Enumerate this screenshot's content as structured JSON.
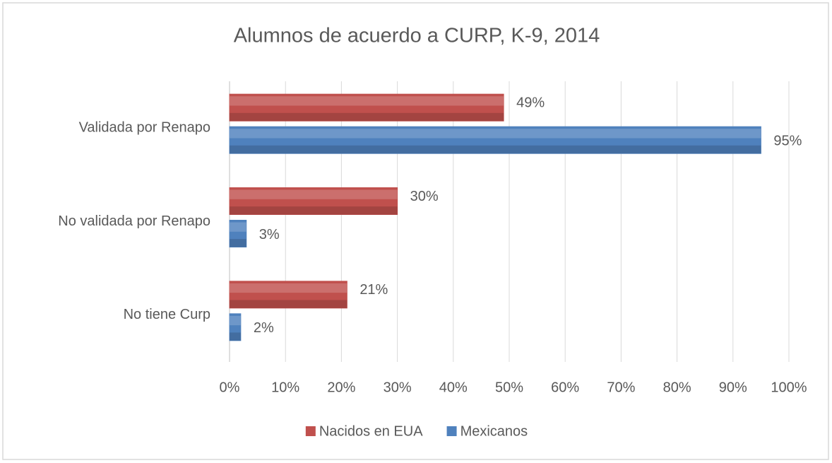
{
  "chart_data": {
    "type": "hbar",
    "title": "Alumnos de acuerdo a CURP, K-9, 2014",
    "categories": [
      "Validada por Renapo",
      "No validada por Renapo",
      "No tiene Curp"
    ],
    "series": [
      {
        "name": "Nacidos en EUA",
        "color": "#c0504d",
        "values": [
          49,
          30,
          21
        ],
        "value_labels": [
          "49%",
          "30%",
          "21%"
        ]
      },
      {
        "name": "Mexicanos",
        "color": "#4f81bd",
        "values": [
          95,
          3,
          2
        ],
        "value_labels": [
          "95%",
          "3%",
          "2%"
        ]
      }
    ],
    "xlim": [
      0,
      100
    ],
    "xticks": [
      {
        "value": 0,
        "label": "0%"
      },
      {
        "value": 10,
        "label": "10%"
      },
      {
        "value": 20,
        "label": "20%"
      },
      {
        "value": 30,
        "label": "30%"
      },
      {
        "value": 40,
        "label": "40%"
      },
      {
        "value": 50,
        "label": "50%"
      },
      {
        "value": 60,
        "label": "60%"
      },
      {
        "value": 70,
        "label": "70%"
      },
      {
        "value": 80,
        "label": "80%"
      },
      {
        "value": 90,
        "label": "90%"
      },
      {
        "value": 100,
        "label": "100%"
      }
    ],
    "grid": true,
    "legend": "bottom"
  }
}
